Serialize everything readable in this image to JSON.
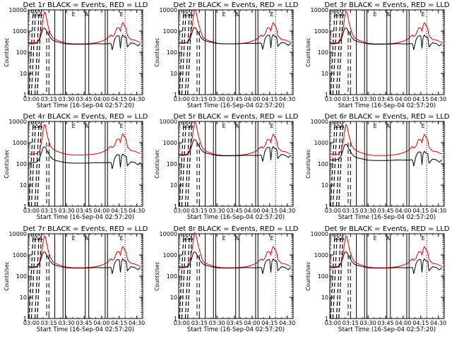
{
  "chart_data": {
    "type": "line",
    "layout": "3x3 grid of panels",
    "y_scale": "log",
    "ylim": [
      1,
      10000
    ],
    "y_ticks": [
      "1",
      "10",
      "100",
      "1000",
      "10000"
    ],
    "ylabel": "Counts/sec",
    "xlabel": "Start Time (16-Sep-04 02:57:20)",
    "x_ticks": [
      "03:00",
      "03:15",
      "03:30",
      "03:45",
      "04:00",
      "04:15",
      "04:30"
    ],
    "x_tick_values": [
      "03:00",
      "03:15",
      "03:30",
      "03:45",
      "04:00",
      "04:15",
      "04:30"
    ],
    "xlim": [
      "02:57:20",
      "04:35"
    ],
    "colors": {
      "events": "#000000",
      "lld": "#e00000"
    },
    "panels": [
      {
        "title": "Det 1r BLACK = Events, RED = LLD",
        "lld_scale": 1.0,
        "event_scale": 1.0,
        "flare_scale": 1.0
      },
      {
        "title": "Det 2r BLACK = Events, RED = LLD",
        "lld_scale": 1.0,
        "event_scale": 1.05,
        "flare_scale": 1.3
      },
      {
        "title": "Det 3r BLACK = Events, RED = LLD",
        "lld_scale": 1.0,
        "event_scale": 1.0,
        "flare_scale": 1.1
      },
      {
        "title": "Det 4r BLACK = Events, RED = LLD",
        "lld_scale": 1.05,
        "event_scale": 0.45,
        "flare_scale": 0.9
      },
      {
        "title": "Det 5r BLACK = Events, RED = LLD",
        "lld_scale": 1.0,
        "event_scale": 1.0,
        "flare_scale": 1.2
      },
      {
        "title": "Det 6r BLACK = Events, RED = LLD",
        "lld_scale": 1.0,
        "event_scale": 0.6,
        "flare_scale": 0.9
      },
      {
        "title": "Det 7r BLACK = Events, RED = LLD",
        "lld_scale": 1.0,
        "event_scale": 1.0,
        "flare_scale": 1.0
      },
      {
        "title": "Det 8r BLACK = Events, RED = LLD",
        "lld_scale": 1.0,
        "event_scale": 1.0,
        "flare_scale": 1.4
      },
      {
        "title": "Det 9r BLACK = Events, RED = LLD",
        "lld_scale": 1.0,
        "event_scale": 1.0,
        "flare_scale": 1.0
      }
    ],
    "series": [
      {
        "name": "LLD",
        "color": "#e00000",
        "points": [
          [
            "02:57:20",
            280
          ],
          [
            "03:00",
            270
          ],
          [
            "03:03",
            280
          ],
          [
            "03:05",
            300
          ],
          [
            "03:07",
            450
          ],
          [
            "03:09",
            1500
          ],
          [
            "03:10",
            4000
          ],
          [
            "03:11",
            8000
          ],
          [
            "03:12",
            7000
          ],
          [
            "03:14",
            2000
          ],
          [
            "03:16",
            800
          ],
          [
            "03:18",
            500
          ],
          [
            "03:20",
            420
          ],
          [
            "03:23",
            350
          ],
          [
            "03:27",
            300
          ],
          [
            "03:30",
            270
          ],
          [
            "03:35",
            250
          ],
          [
            "03:40",
            250
          ],
          [
            "03:45",
            250
          ],
          [
            "03:50",
            260
          ],
          [
            "03:55",
            280
          ],
          [
            "04:00",
            330
          ],
          [
            "04:04",
            420
          ],
          [
            "04:07",
            600
          ],
          [
            "04:08",
            650
          ],
          [
            "04:09",
            550
          ],
          [
            "04:11",
            700
          ],
          [
            "04:12",
            1000
          ],
          [
            "04:13",
            1400
          ],
          [
            "04:15",
            1400
          ],
          [
            "04:16",
            1000
          ],
          [
            "04:17",
            1800
          ],
          [
            "04:18",
            2500
          ],
          [
            "04:19",
            2000
          ],
          [
            "04:21",
            1300
          ],
          [
            "04:22",
            600
          ],
          [
            "04:25",
            400
          ],
          [
            "04:28",
            380
          ],
          [
            "04:31",
            320
          ],
          [
            "04:33",
            300
          ]
        ]
      },
      {
        "name": "Events",
        "color": "#000000",
        "points": [
          [
            "02:57:20",
            260
          ],
          [
            "03:00",
            250
          ],
          [
            "03:03",
            260
          ],
          [
            "03:05",
            280
          ],
          [
            "03:07",
            400
          ],
          [
            "03:09",
            900
          ],
          [
            "03:10",
            1300
          ],
          [
            "03:11",
            1400
          ],
          [
            "03:12",
            1300
          ],
          [
            "03:14",
            800
          ],
          [
            "03:16",
            500
          ],
          [
            "03:18",
            380
          ],
          [
            "03:20",
            330
          ],
          [
            "03:23",
            300
          ],
          [
            "03:27",
            270
          ],
          [
            "03:30",
            250
          ],
          [
            "03:35",
            240
          ],
          [
            "03:40",
            240
          ],
          [
            "03:45",
            240
          ],
          [
            "03:50",
            245
          ],
          [
            "03:55",
            255
          ],
          [
            "04:00",
            250
          ],
          [
            "04:04",
            250
          ],
          [
            "04:07",
            260
          ],
          [
            "04:08",
            250
          ],
          [
            "04:09",
            130
          ],
          [
            "04:11",
            400
          ],
          [
            "04:12",
            500
          ],
          [
            "04:13",
            600
          ],
          [
            "04:15",
            600
          ],
          [
            "04:16",
            150
          ],
          [
            "04:17",
            500
          ],
          [
            "04:18",
            650
          ],
          [
            "04:19",
            550
          ],
          [
            "04:21",
            500
          ],
          [
            "04:22",
            180
          ],
          [
            "04:25",
            280
          ],
          [
            "04:28",
            260
          ],
          [
            "04:31",
            200
          ],
          [
            "04:33",
            260
          ]
        ]
      }
    ],
    "markers": {
      "solid": [
        "03:20",
        "03:27",
        "03:29",
        "03:46",
        "03:49",
        "04:03",
        "04:05"
      ],
      "dashed_long": [
        "02:58",
        "03:00",
        "03:03",
        "03:05"
      ],
      "dashed_short": [
        "03:13",
        "03:15"
      ],
      "dotted": [
        "04:20",
        "04:34"
      ]
    },
    "mode_labels": [
      {
        "text": "S",
        "x": "03:02"
      },
      {
        "text": "S",
        "x": "03:05"
      },
      {
        "text": "A",
        "x": "03:08"
      },
      {
        "text": "E",
        "x": "03:36"
      },
      {
        "text": "A",
        "x": "03:47"
      },
      {
        "text": "E",
        "x": "04:17"
      }
    ]
  }
}
